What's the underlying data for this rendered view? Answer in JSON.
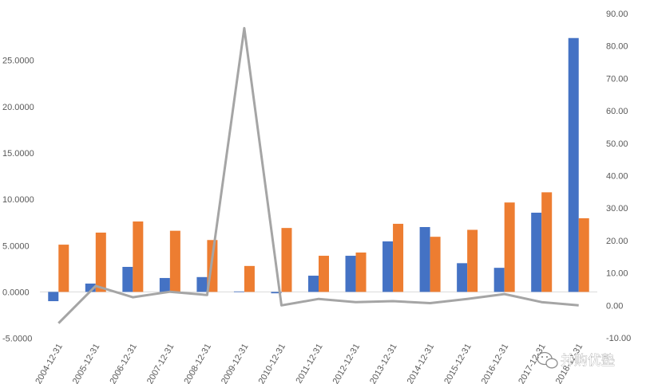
{
  "chart_data": {
    "type": "bar",
    "categories": [
      "2004-12-31",
      "2005-12-31",
      "2006-12-31",
      "2007-12-31",
      "2008-12-31",
      "2009-12-31",
      "2010-12-31",
      "2011-12-31",
      "2012-12-31",
      "2013-12-31",
      "2014-12-31",
      "2015-12-31",
      "2016-12-31",
      "2017-12-31",
      "2018-12-31"
    ],
    "series": [
      {
        "type": "bar",
        "axis": "left",
        "color": "#4472c4",
        "values": [
          -1.0,
          0.9,
          2.7,
          1.5,
          1.6,
          0.05,
          -0.15,
          1.75,
          3.9,
          5.45,
          7.0,
          3.1,
          2.6,
          8.55,
          27.4
        ]
      },
      {
        "type": "bar",
        "axis": "left",
        "color": "#ed7d31",
        "values": [
          5.1,
          6.4,
          7.6,
          6.6,
          5.6,
          2.8,
          6.9,
          3.9,
          4.25,
          7.35,
          5.95,
          6.7,
          9.65,
          10.75,
          7.95
        ]
      },
      {
        "type": "line",
        "axis": "right",
        "color": "#a5a5a5",
        "values": [
          -5.5,
          6.0,
          2.5,
          4.2,
          3.2,
          85.5,
          0.0,
          2.0,
          1.0,
          1.3,
          0.7,
          2.0,
          3.5,
          1.0,
          0.0
        ]
      }
    ],
    "y_left": {
      "min": -5,
      "max": 30,
      "step": 5,
      "tick_labels": [
        "-5.0000",
        "0.0000",
        "5.0000",
        "10.0000",
        "15.0000",
        "20.0000",
        "25.0000"
      ]
    },
    "y_right": {
      "min": -10,
      "max": 90,
      "step": 10,
      "tick_labels": [
        "-10.00",
        "0.00",
        "10.00",
        "20.00",
        "30.00",
        "40.00",
        "50.00",
        "60.00",
        "70.00",
        "80.00",
        "90.00"
      ]
    },
    "grid": false,
    "legend": "none",
    "title": "",
    "xlabel": "",
    "ylabel": ""
  },
  "watermark": {
    "text": "并购优塾",
    "icon": "wechat-icon"
  }
}
